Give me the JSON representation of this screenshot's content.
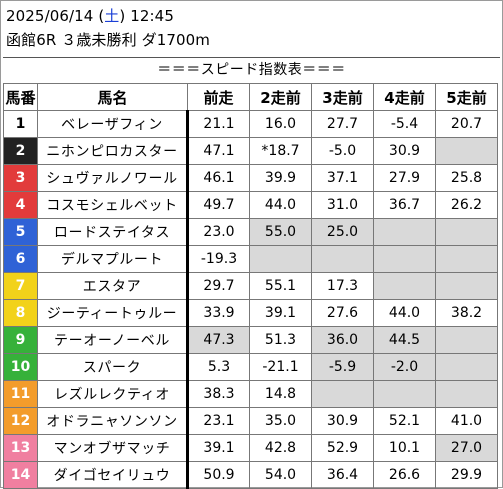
{
  "header": {
    "date": "2025/06/14",
    "weekday_open": "(",
    "weekday": "土",
    "weekday_close": ")",
    "time": "12:45",
    "race": "函館6R ３歳未勝利 ダ1700m"
  },
  "banner": "＝＝＝スピード指数表＝＝＝",
  "columns": [
    "馬番",
    "馬名",
    "前走",
    "2走前",
    "3走前",
    "4走前",
    "5走前"
  ],
  "rows": [
    {
      "num": "1",
      "name": "ベレーザフィン",
      "bg": "#ffffff",
      "fg": "#000000",
      "vals": [
        "21.1",
        "16.0",
        "27.7",
        "-5.4",
        "20.7"
      ],
      "shade": [],
      "empty": []
    },
    {
      "num": "2",
      "name": "ニホンピロカスター",
      "bg": "#222222",
      "fg": "#ffffff",
      "vals": [
        "47.1",
        "*18.7",
        "-5.0",
        "30.9",
        ""
      ],
      "shade": [],
      "empty": [
        4
      ]
    },
    {
      "num": "3",
      "name": "シュヴァルノワール",
      "bg": "#e23b3b",
      "fg": "#ffffff",
      "vals": [
        "46.1",
        "39.9",
        "37.1",
        "27.9",
        "25.8"
      ],
      "shade": [],
      "empty": []
    },
    {
      "num": "4",
      "name": "コスモシェルベット",
      "bg": "#e23b3b",
      "fg": "#ffffff",
      "vals": [
        "49.7",
        "44.0",
        "31.0",
        "36.7",
        "26.2"
      ],
      "shade": [],
      "empty": []
    },
    {
      "num": "5",
      "name": "ロードステイタス",
      "bg": "#2f62d6",
      "fg": "#ffffff",
      "vals": [
        "23.0",
        "55.0",
        "25.0",
        "",
        ""
      ],
      "shade": [
        1,
        2
      ],
      "empty": [
        3,
        4
      ]
    },
    {
      "num": "6",
      "name": "デルマプルート",
      "bg": "#2f62d6",
      "fg": "#ffffff",
      "vals": [
        "-19.3",
        "",
        "",
        "",
        ""
      ],
      "shade": [],
      "empty": [
        1,
        2,
        3,
        4
      ]
    },
    {
      "num": "7",
      "name": "エスタア",
      "bg": "#f2d21a",
      "fg": "#ffffff",
      "vals": [
        "29.7",
        "55.1",
        "17.3",
        "",
        ""
      ],
      "shade": [],
      "empty": [
        3,
        4
      ]
    },
    {
      "num": "8",
      "name": "ジーティートゥルー",
      "bg": "#f2d21a",
      "fg": "#ffffff",
      "vals": [
        "33.9",
        "39.1",
        "27.6",
        "44.0",
        "38.2"
      ],
      "shade": [],
      "empty": []
    },
    {
      "num": "9",
      "name": "テーオーノーベル",
      "bg": "#36b13a",
      "fg": "#ffffff",
      "vals": [
        "47.3",
        "51.3",
        "36.0",
        "44.5",
        ""
      ],
      "shade": [
        0,
        2,
        3
      ],
      "empty": [
        4
      ]
    },
    {
      "num": "10",
      "name": "スパーク",
      "bg": "#36b13a",
      "fg": "#ffffff",
      "vals": [
        "5.3",
        "-21.1",
        "-5.9",
        "-2.0",
        ""
      ],
      "shade": [
        2,
        3
      ],
      "empty": [
        4
      ]
    },
    {
      "num": "11",
      "name": "レズルレクティオ",
      "bg": "#f39c2b",
      "fg": "#ffffff",
      "vals": [
        "38.3",
        "14.8",
        "",
        "",
        ""
      ],
      "shade": [],
      "empty": [
        2,
        3,
        4
      ]
    },
    {
      "num": "12",
      "name": "オドラニャソンソン",
      "bg": "#f39c2b",
      "fg": "#ffffff",
      "vals": [
        "23.1",
        "35.0",
        "30.9",
        "52.1",
        "41.0"
      ],
      "shade": [],
      "empty": []
    },
    {
      "num": "13",
      "name": "マンオブザマッチ",
      "bg": "#f07fa0",
      "fg": "#ffffff",
      "vals": [
        "39.1",
        "42.8",
        "52.9",
        "10.1",
        "27.0"
      ],
      "shade": [
        4
      ],
      "empty": []
    },
    {
      "num": "14",
      "name": "ダイゴセイリュウ",
      "bg": "#f07fa0",
      "fg": "#ffffff",
      "vals": [
        "50.9",
        "54.0",
        "36.4",
        "26.6",
        "29.9"
      ],
      "shade": [],
      "empty": []
    }
  ]
}
